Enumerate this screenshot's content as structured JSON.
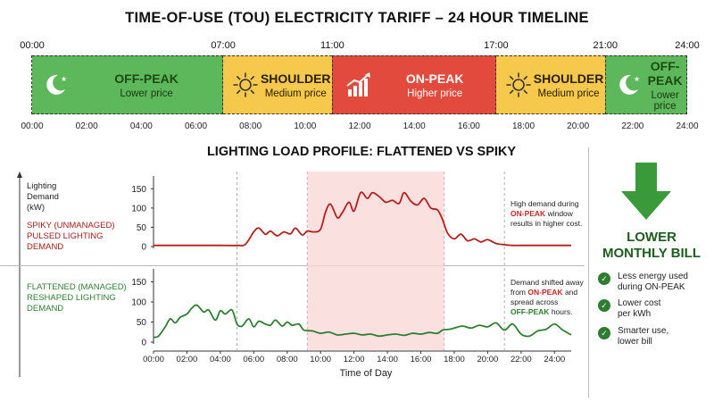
{
  "title": "TIME-OF-USE (TOU) ELECTRICITY TARIFF – 24 HOUR TIMELINE",
  "timeline": {
    "boundaries": [
      "00:00",
      "07:00",
      "11:00",
      "17:00",
      "21:00",
      "24:00"
    ],
    "even_ticks": [
      "00:00",
      "02:00",
      "04:00",
      "06:00",
      "08:00",
      "10:00",
      "12:00",
      "14:00",
      "16:00",
      "18:00",
      "20:00",
      "22:00",
      "24:00"
    ],
    "periods": [
      {
        "name": "OFF-PEAK",
        "sub": "Lower price",
        "icon": "moon-icon",
        "start": 0,
        "end": 7,
        "color": "#5db85c"
      },
      {
        "name": "SHOULDER",
        "sub": "Medium price",
        "icon": "sun-icon",
        "start": 7,
        "end": 11,
        "color": "#f6c84b"
      },
      {
        "name": "ON-PEAK",
        "sub": "Higher price",
        "icon": "rising-bar-chart-icon",
        "start": 11,
        "end": 17,
        "color": "#e24a3e"
      },
      {
        "name": "SHOULDER",
        "sub": "Medium price",
        "icon": "sun-icon",
        "start": 17,
        "end": 21,
        "color": "#f6c84b"
      },
      {
        "name": "OFF-PEAK",
        "sub": "Lower price",
        "icon": "moon-icon",
        "start": 21,
        "end": 24,
        "color": "#5db85c"
      }
    ]
  },
  "chart_title": "LIGHTING LOAD PROFILE: FLATTENED VS SPIKY",
  "y_axis_label": [
    "Lighting",
    "Demand",
    "(kW)"
  ],
  "x_axis_title": "Time of Day",
  "spiky_label": [
    "SPIKY (UNMANAGED)",
    "PULSED LIGHTING",
    "DEMAND"
  ],
  "flat_label": [
    "FLATTENED (MANAGED)",
    "RESHAPED LIGHTING",
    "DEMAND"
  ],
  "spiky_note": {
    "l1": "High demand during",
    "l2_b": "ON-PEAK",
    "l2_t": " window",
    "l3": "results in higher cost."
  },
  "flat_note": {
    "l1": "Demand shifted away",
    "l2_t": "from ",
    "l2_b": "ON-PEAK",
    "l2_t2": " and",
    "l3": "spread across",
    "l4_b": "OFF-PEAK",
    "l4_t": " hours."
  },
  "bill": {
    "title_line1": "LOWER",
    "title_line2": "MONTHLY BILL",
    "items": [
      [
        "Less energy used",
        "during ON-PEAK"
      ],
      [
        "Lower cost",
        "per kWh"
      ],
      [
        "Smarter use,",
        "lower bill"
      ]
    ],
    "arrow_color": "#3a9a3a"
  },
  "colors": {
    "spiky": "#b71c1c",
    "flat": "#2e7d32",
    "onpeak_shade": "#f8d7d4"
  },
  "chart_data": {
    "type": "line",
    "xlabel": "Time of Day",
    "ylabel": "Lighting Demand (kW)",
    "x_ticks": [
      "00:00",
      "02:00",
      "04:00",
      "06:00",
      "08:00",
      "10:00",
      "12:00",
      "14:00",
      "16:00",
      "18:00",
      "20:00",
      "22:00",
      "24:00"
    ],
    "xlim": [
      0,
      25
    ],
    "ylim": [
      0,
      160
    ],
    "y_ticks": [
      0,
      50,
      100,
      150
    ],
    "grid": false,
    "shaded_window": [
      9.2,
      17.4
    ],
    "panels": [
      {
        "name": "SPIKY (UNMANAGED)",
        "color": "#b71c1c",
        "x": [
          0,
          1,
          2,
          3,
          4,
          5,
          5.5,
          6,
          6.3,
          6.7,
          7,
          7.4,
          7.8,
          8.2,
          8.5,
          8.9,
          9.2,
          9.6,
          10,
          10.3,
          10.6,
          11,
          11.3,
          11.7,
          12,
          12.4,
          12.8,
          13.1,
          13.5,
          13.9,
          14.3,
          14.7,
          15,
          15.4,
          15.8,
          16.2,
          16.6,
          17,
          17.3,
          17.6,
          18,
          18.4,
          18.8,
          19.2,
          19.6,
          20,
          20.5,
          21,
          21.5,
          22,
          23,
          24,
          25
        ],
        "y": [
          3,
          3,
          3,
          3,
          3,
          3,
          6,
          38,
          48,
          32,
          40,
          28,
          38,
          33,
          48,
          30,
          40,
          38,
          45,
          90,
          110,
          75,
          88,
          115,
          92,
          140,
          125,
          140,
          130,
          115,
          120,
          112,
          140,
          118,
          108,
          125,
          100,
          95,
          70,
          35,
          20,
          32,
          15,
          20,
          12,
          18,
          8,
          5,
          3,
          3,
          3,
          3,
          3
        ]
      },
      {
        "name": "FLATTENED (MANAGED)",
        "color": "#2e7d32",
        "x": [
          0,
          0.3,
          0.7,
          1,
          1.3,
          1.6,
          2,
          2.3,
          2.6,
          3,
          3.3,
          3.7,
          4,
          4.3,
          4.7,
          5,
          5.3,
          5.7,
          6,
          6.3,
          6.7,
          7,
          7.3,
          7.7,
          8,
          8.3,
          8.7,
          9,
          9.5,
          10,
          10.5,
          11,
          11.5,
          12,
          12.5,
          13,
          13.5,
          14,
          14.5,
          15,
          15.5,
          16,
          16.5,
          17,
          17.3,
          17.7,
          18,
          18.5,
          19,
          19.5,
          20,
          20.5,
          21,
          21.5,
          22,
          22.5,
          23,
          23.5,
          24,
          24.5,
          25
        ],
        "y": [
          12,
          15,
          38,
          58,
          48,
          62,
          70,
          85,
          92,
          75,
          80,
          55,
          78,
          70,
          80,
          45,
          40,
          58,
          38,
          52,
          45,
          42,
          55,
          40,
          50,
          42,
          45,
          30,
          28,
          22,
          25,
          18,
          20,
          22,
          18,
          20,
          15,
          18,
          20,
          17,
          22,
          20,
          24,
          22,
          30,
          32,
          35,
          40,
          35,
          42,
          38,
          48,
          30,
          45,
          20,
          15,
          28,
          32,
          45,
          30,
          18
        ]
      }
    ]
  }
}
